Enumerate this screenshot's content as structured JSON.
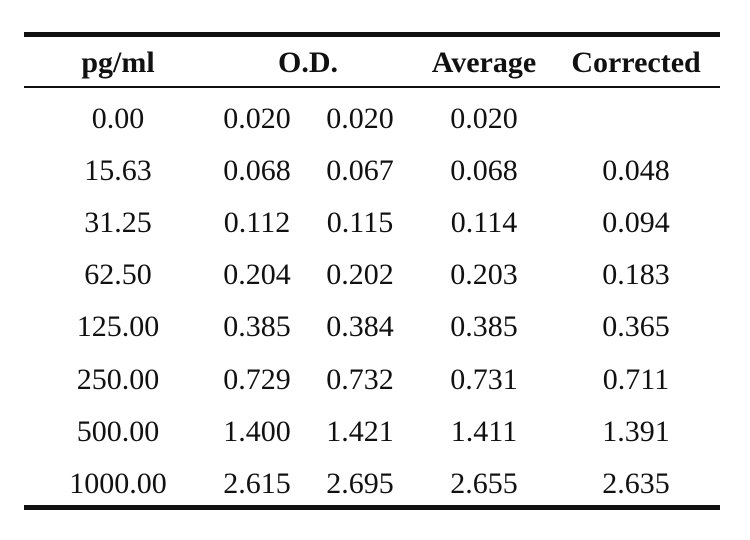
{
  "table": {
    "headers": {
      "concentration": "pg/ml",
      "od": "O.D.",
      "average": "Average",
      "corrected": "Corrected"
    },
    "rows": [
      {
        "concentration": "0.00",
        "od1": "0.020",
        "od2": "0.020",
        "average": "0.020",
        "corrected": ""
      },
      {
        "concentration": "15.63",
        "od1": "0.068",
        "od2": "0.067",
        "average": "0.068",
        "corrected": "0.048"
      },
      {
        "concentration": "31.25",
        "od1": "0.112",
        "od2": "0.115",
        "average": "0.114",
        "corrected": "0.094"
      },
      {
        "concentration": "62.50",
        "od1": "0.204",
        "od2": "0.202",
        "average": "0.203",
        "corrected": "0.183"
      },
      {
        "concentration": "125.00",
        "od1": "0.385",
        "od2": "0.384",
        "average": "0.385",
        "corrected": "0.365"
      },
      {
        "concentration": "250.00",
        "od1": "0.729",
        "od2": "0.732",
        "average": "0.731",
        "corrected": "0.711"
      },
      {
        "concentration": "500.00",
        "od1": "1.400",
        "od2": "1.421",
        "average": "1.411",
        "corrected": "1.391"
      },
      {
        "concentration": "1000.00",
        "od1": "2.615",
        "od2": "2.695",
        "average": "2.655",
        "corrected": "2.635"
      }
    ]
  }
}
